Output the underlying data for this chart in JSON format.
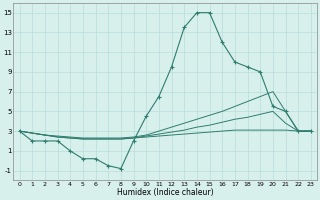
{
  "xlabel": "Humidex (Indice chaleur)",
  "x": [
    0,
    1,
    2,
    3,
    4,
    5,
    6,
    7,
    8,
    9,
    10,
    11,
    12,
    13,
    14,
    15,
    16,
    17,
    18,
    19,
    20,
    21,
    22,
    23
  ],
  "main_line": [
    3,
    2,
    2,
    2,
    1,
    0.2,
    0.2,
    -0.5,
    -0.8,
    2,
    4.5,
    6.5,
    9.5,
    13.5,
    15,
    15,
    12,
    10,
    9.5,
    9,
    5.5,
    5,
    3,
    3
  ],
  "line2": [
    3,
    2.8,
    2.6,
    2.5,
    2.4,
    2.3,
    2.3,
    2.3,
    2.3,
    2.4,
    2.6,
    3.0,
    3.4,
    3.8,
    4.2,
    4.6,
    5.0,
    5.5,
    6.0,
    6.5,
    7.0,
    5.0,
    3.0,
    3.0
  ],
  "line3": [
    3,
    2.8,
    2.6,
    2.4,
    2.3,
    2.2,
    2.2,
    2.2,
    2.2,
    2.3,
    2.5,
    2.7,
    2.9,
    3.1,
    3.4,
    3.6,
    3.9,
    4.2,
    4.4,
    4.7,
    5.0,
    3.8,
    3.0,
    3.0
  ],
  "line4": [
    3,
    2.8,
    2.6,
    2.4,
    2.3,
    2.2,
    2.2,
    2.2,
    2.2,
    2.3,
    2.4,
    2.5,
    2.6,
    2.7,
    2.8,
    2.9,
    3.0,
    3.1,
    3.1,
    3.1,
    3.1,
    3.1,
    3.0,
    3.0
  ],
  "color": "#2e7d6e",
  "bg_color": "#d8f0ec",
  "grid_color": "#b8ddd8",
  "ylim": [
    -2,
    16
  ],
  "yticks": [
    -1,
    1,
    3,
    5,
    7,
    9,
    11,
    13,
    15
  ],
  "xticks": [
    0,
    1,
    2,
    3,
    4,
    5,
    6,
    7,
    8,
    9,
    10,
    11,
    12,
    13,
    14,
    15,
    16,
    17,
    18,
    19,
    20,
    21,
    22,
    23
  ]
}
